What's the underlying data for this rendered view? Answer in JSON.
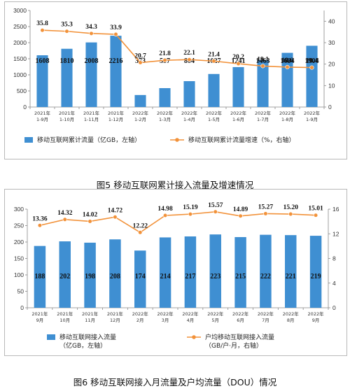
{
  "captions": {
    "fig5": "图5   移动互联网累计接入流量及增速情况",
    "fig6": "图6   移动互联网接入月流量及户均流量（DOU）情况"
  },
  "chart_data": [
    {
      "type": "bar",
      "categories": [
        [
          "2021年",
          "1-9月"
        ],
        [
          "2021年",
          "1-10月"
        ],
        [
          "2021年",
          "1-11月"
        ],
        [
          "2021年",
          "1-12月"
        ],
        [
          "2022年",
          "1-2月"
        ],
        [
          "2022年",
          "1-3月"
        ],
        [
          "2022年",
          "1-4月"
        ],
        [
          "2022年",
          "1-5月"
        ],
        [
          "2022年",
          "1-6月"
        ],
        [
          "2022年",
          "1-7月"
        ],
        [
          "2022年",
          "1-8月"
        ],
        [
          "2022年",
          "1-9月"
        ]
      ],
      "series": [
        {
          "name": "移动互联网累计流量（亿GB，左轴）",
          "kind": "bar",
          "axis": "left",
          "color": "#3f8fd2",
          "values": [
            1608,
            1810,
            2008,
            2216,
            373,
            587,
            804,
            1027,
            1241,
            1463,
            1684,
            1904
          ]
        },
        {
          "name": "移动互联网累计流量增速（%，右轴）",
          "kind": "line",
          "axis": "right",
          "color": "#f2923a",
          "values": [
            35.8,
            35.3,
            34.3,
            33.9,
            20.7,
            21.8,
            22.1,
            21.4,
            20.2,
            19.1,
            18.6,
            18.4
          ]
        }
      ],
      "ylim": [
        0,
        3000
      ],
      "yticks": [
        0,
        500,
        1000,
        1500,
        2000,
        2500,
        3000
      ],
      "y2lim": [
        0,
        45
      ],
      "y2ticks": [
        0,
        10,
        20,
        30,
        40
      ],
      "legend_position": "bottom"
    },
    {
      "type": "bar",
      "categories": [
        [
          "2021年",
          "9月"
        ],
        [
          "2021年",
          "10月"
        ],
        [
          "2021年",
          "11月"
        ],
        [
          "2021年",
          "12月"
        ],
        [
          "2022年",
          "2月"
        ],
        [
          "2022年",
          "3月"
        ],
        [
          "2022年",
          "4月"
        ],
        [
          "2022年",
          "5月"
        ],
        [
          "2022年",
          "6月"
        ],
        [
          "2022年",
          "7月"
        ],
        [
          "2022年",
          "8月"
        ],
        [
          "2022年",
          "9月"
        ]
      ],
      "series": [
        {
          "name": "移动互联网接入流量\n（亿GB，左轴）",
          "kind": "bar",
          "axis": "left",
          "color": "#3f8fd2",
          "values": [
            188,
            202,
            198,
            208,
            174,
            214,
            217,
            223,
            215,
            222,
            221,
            219
          ]
        },
        {
          "name": "户均移动互联网接入流量\n（GB/户·月，右轴）",
          "kind": "line",
          "axis": "right",
          "color": "#f2923a",
          "values": [
            13.36,
            14.32,
            14.02,
            14.72,
            12.22,
            14.98,
            15.19,
            15.57,
            14.89,
            15.27,
            15.2,
            15.01
          ]
        }
      ],
      "ylim": [
        0,
        300
      ],
      "yticks": [
        0,
        50,
        100,
        150,
        200,
        250,
        300
      ],
      "y2lim": [
        0,
        16
      ],
      "y2ticks": [
        0,
        4,
        8,
        12,
        16
      ],
      "legend_position": "bottom"
    }
  ]
}
